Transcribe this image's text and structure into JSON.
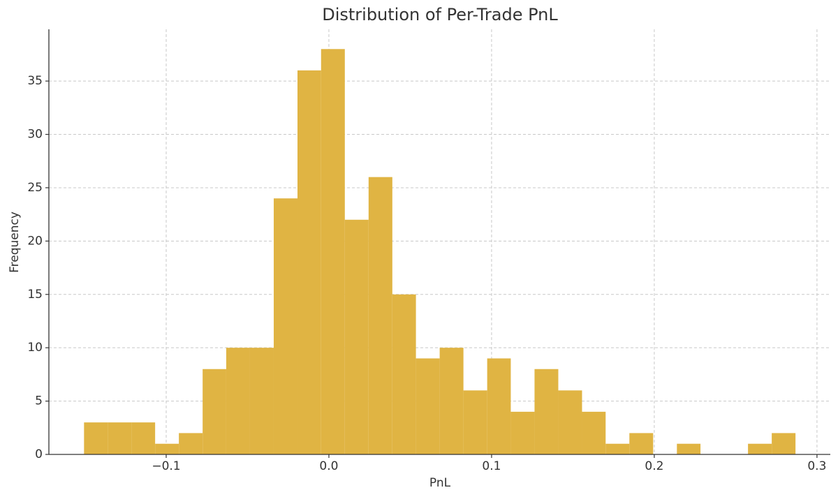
{
  "chart_data": {
    "type": "histogram",
    "title": "Distribution of Per-Trade PnL",
    "x_label": "PnL",
    "y_label": "Frequency",
    "color": "#e0b443",
    "grid": true,
    "bins": [
      -0.1505,
      -0.1359,
      -0.1214,
      -0.1068,
      -0.0922,
      -0.0776,
      -0.0631,
      -0.0485,
      -0.0339,
      -0.0193,
      -0.0048,
      0.0098,
      0.0244,
      0.039,
      0.0535,
      0.0681,
      0.0827,
      0.0973,
      0.1118,
      0.1264,
      0.141,
      0.1556,
      0.1701,
      0.1847,
      0.1993,
      0.2139,
      0.2284,
      0.243,
      0.2576,
      0.2722,
      0.2868
    ],
    "counts": [
      3,
      3,
      3,
      1,
      2,
      8,
      10,
      10,
      24,
      36,
      38,
      22,
      26,
      15,
      9,
      10,
      6,
      9,
      4,
      8,
      6,
      4,
      1,
      2,
      0,
      1,
      0,
      0,
      1,
      2
    ],
    "xlim": [
      -0.1721,
      0.3082
    ],
    "ylim": [
      0,
      39.85
    ],
    "xticks": [
      {
        "value": -0.1,
        "label": "−0.1"
      },
      {
        "value": 0.0,
        "label": "0.0"
      },
      0.1,
      0.2,
      0.3
    ],
    "yticks": [
      0,
      5,
      10,
      15,
      20,
      25,
      30,
      35
    ]
  }
}
